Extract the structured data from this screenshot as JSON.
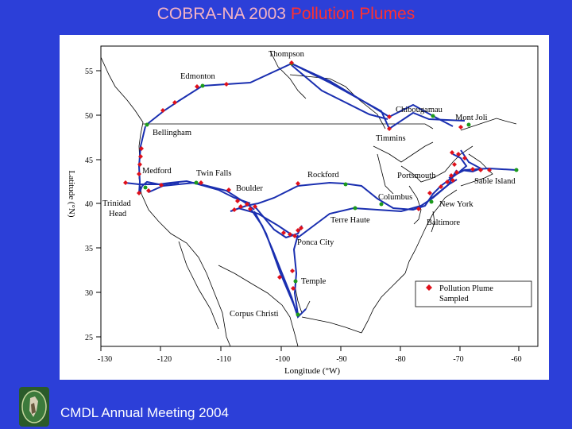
{
  "title": {
    "part1": "COBRA-NA 2003 ",
    "part2": "Pollution Plumes"
  },
  "footer": "CMDL Annual Meeting 2004",
  "map": {
    "xlabel": "Longitude (°W)",
    "ylabel": "Latitude (°N)",
    "x_ticks": [
      "-130",
      "-120",
      "-110",
      "-100",
      "-90",
      "-80",
      "-70",
      "-60"
    ],
    "y_ticks": [
      "55",
      "50",
      "45",
      "40",
      "35",
      "30",
      "25"
    ],
    "legend": {
      "line1": "Pollution Plume",
      "line2": "Sampled"
    },
    "places": {
      "thompson": "Thompson",
      "edmonton": "Edmonton",
      "chibougamau": "Chibougamau",
      "mont_joli": "Mont Joli",
      "bellingham": "Bellingham",
      "timmins": "Timmins",
      "medford": "Medford",
      "twin_falls": "Twin Falls",
      "rockford": "Rockford",
      "portsmouth": "Portsmouth",
      "sable_island": "Sable Island",
      "boulder": "Boulder",
      "columbus": "Columbus",
      "trinidad": "Trinidad",
      "head": "Head",
      "new_york": "New York",
      "terre_haute": "Terre Haute",
      "baltimore": "Baltimore",
      "ponca_city": "Ponca City",
      "temple": "Temple",
      "corpus_christi": "Corpus Christi"
    }
  },
  "colors": {
    "background": "#2c3fd8",
    "flight_track": "#1a2fb0",
    "plume_marker": "#e0101a",
    "site_marker": "#1c9a1c",
    "coastline": "#000000"
  }
}
